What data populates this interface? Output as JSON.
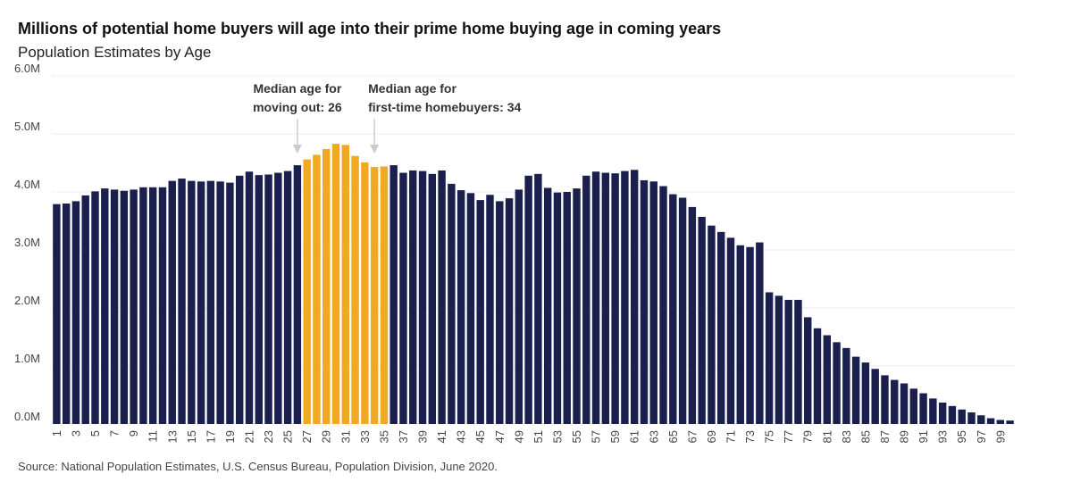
{
  "chart_data": {
    "type": "bar",
    "title": "Millions of potential home buyers will age into their prime home buying age in coming years",
    "subtitle": "Population Estimates by Age",
    "source": "Source: National Population Estimates, U.S. Census Bureau, Population Division, June 2020.",
    "xlabel": "",
    "ylabel": "",
    "ylim": [
      0,
      6000000
    ],
    "y_ticks": [
      {
        "value": 0,
        "label": "0.0M"
      },
      {
        "value": 1000000,
        "label": "1.0M"
      },
      {
        "value": 2000000,
        "label": "2.0M"
      },
      {
        "value": 3000000,
        "label": "3.0M"
      },
      {
        "value": 4000000,
        "label": "4.0M"
      },
      {
        "value": 5000000,
        "label": "5.0M"
      },
      {
        "value": 6000000,
        "label": "6.0M"
      }
    ],
    "grid": true,
    "categories": [
      1,
      2,
      3,
      4,
      5,
      6,
      7,
      8,
      9,
      10,
      11,
      12,
      13,
      14,
      15,
      16,
      17,
      18,
      19,
      20,
      21,
      22,
      23,
      24,
      25,
      26,
      27,
      28,
      29,
      30,
      31,
      32,
      33,
      34,
      35,
      36,
      37,
      38,
      39,
      40,
      41,
      42,
      43,
      44,
      45,
      46,
      47,
      48,
      49,
      50,
      51,
      52,
      53,
      54,
      55,
      56,
      57,
      58,
      59,
      60,
      61,
      62,
      63,
      64,
      65,
      66,
      67,
      68,
      69,
      70,
      71,
      72,
      73,
      74,
      75,
      76,
      77,
      78,
      79,
      80,
      81,
      82,
      83,
      84,
      85,
      86,
      87,
      88,
      89,
      90,
      91,
      92,
      93,
      94,
      95,
      96,
      97,
      98,
      99,
      100
    ],
    "x_tick_labels": [
      "1",
      "3",
      "5",
      "7",
      "9",
      "11",
      "13",
      "15",
      "17",
      "19",
      "21",
      "23",
      "25",
      "27",
      "29",
      "31",
      "33",
      "35",
      "37",
      "39",
      "41",
      "43",
      "45",
      "47",
      "49",
      "51",
      "53",
      "55",
      "57",
      "59",
      "61",
      "63",
      "65",
      "67",
      "69",
      "71",
      "73",
      "75",
      "77",
      "79",
      "81",
      "83",
      "85",
      "87",
      "89",
      "91",
      "93",
      "95",
      "97",
      "99"
    ],
    "values": [
      3790000,
      3800000,
      3840000,
      3940000,
      4010000,
      4060000,
      4040000,
      4020000,
      4040000,
      4080000,
      4080000,
      4080000,
      4190000,
      4230000,
      4190000,
      4180000,
      4190000,
      4180000,
      4160000,
      4280000,
      4350000,
      4290000,
      4300000,
      4330000,
      4360000,
      4460000,
      4560000,
      4640000,
      4740000,
      4830000,
      4810000,
      4620000,
      4510000,
      4430000,
      4440000,
      4460000,
      4330000,
      4370000,
      4360000,
      4310000,
      4370000,
      4140000,
      4030000,
      3980000,
      3860000,
      3950000,
      3840000,
      3890000,
      4040000,
      4280000,
      4310000,
      4070000,
      3990000,
      4000000,
      4060000,
      4280000,
      4350000,
      4330000,
      4320000,
      4360000,
      4380000,
      4200000,
      4180000,
      4100000,
      3960000,
      3900000,
      3740000,
      3570000,
      3420000,
      3310000,
      3210000,
      3080000,
      3050000,
      3130000,
      2270000,
      2210000,
      2140000,
      2140000,
      1840000,
      1650000,
      1530000,
      1410000,
      1310000,
      1160000,
      1060000,
      950000,
      840000,
      760000,
      700000,
      610000,
      530000,
      440000,
      370000,
      310000,
      250000,
      200000,
      150000,
      100000,
      70000,
      60000
    ],
    "highlight_range": [
      27,
      35
    ],
    "colors": {
      "bar": "#1a1f4e",
      "highlight": "#f2a922",
      "grid": "#eeeeee",
      "arrow": "#cccccc"
    },
    "annotations": [
      {
        "lines": [
          "Median age for",
          "moving out: 26"
        ],
        "age": 26
      },
      {
        "lines": [
          "Median age for",
          "first-time homebuyers: 34"
        ],
        "age": 34
      }
    ]
  }
}
